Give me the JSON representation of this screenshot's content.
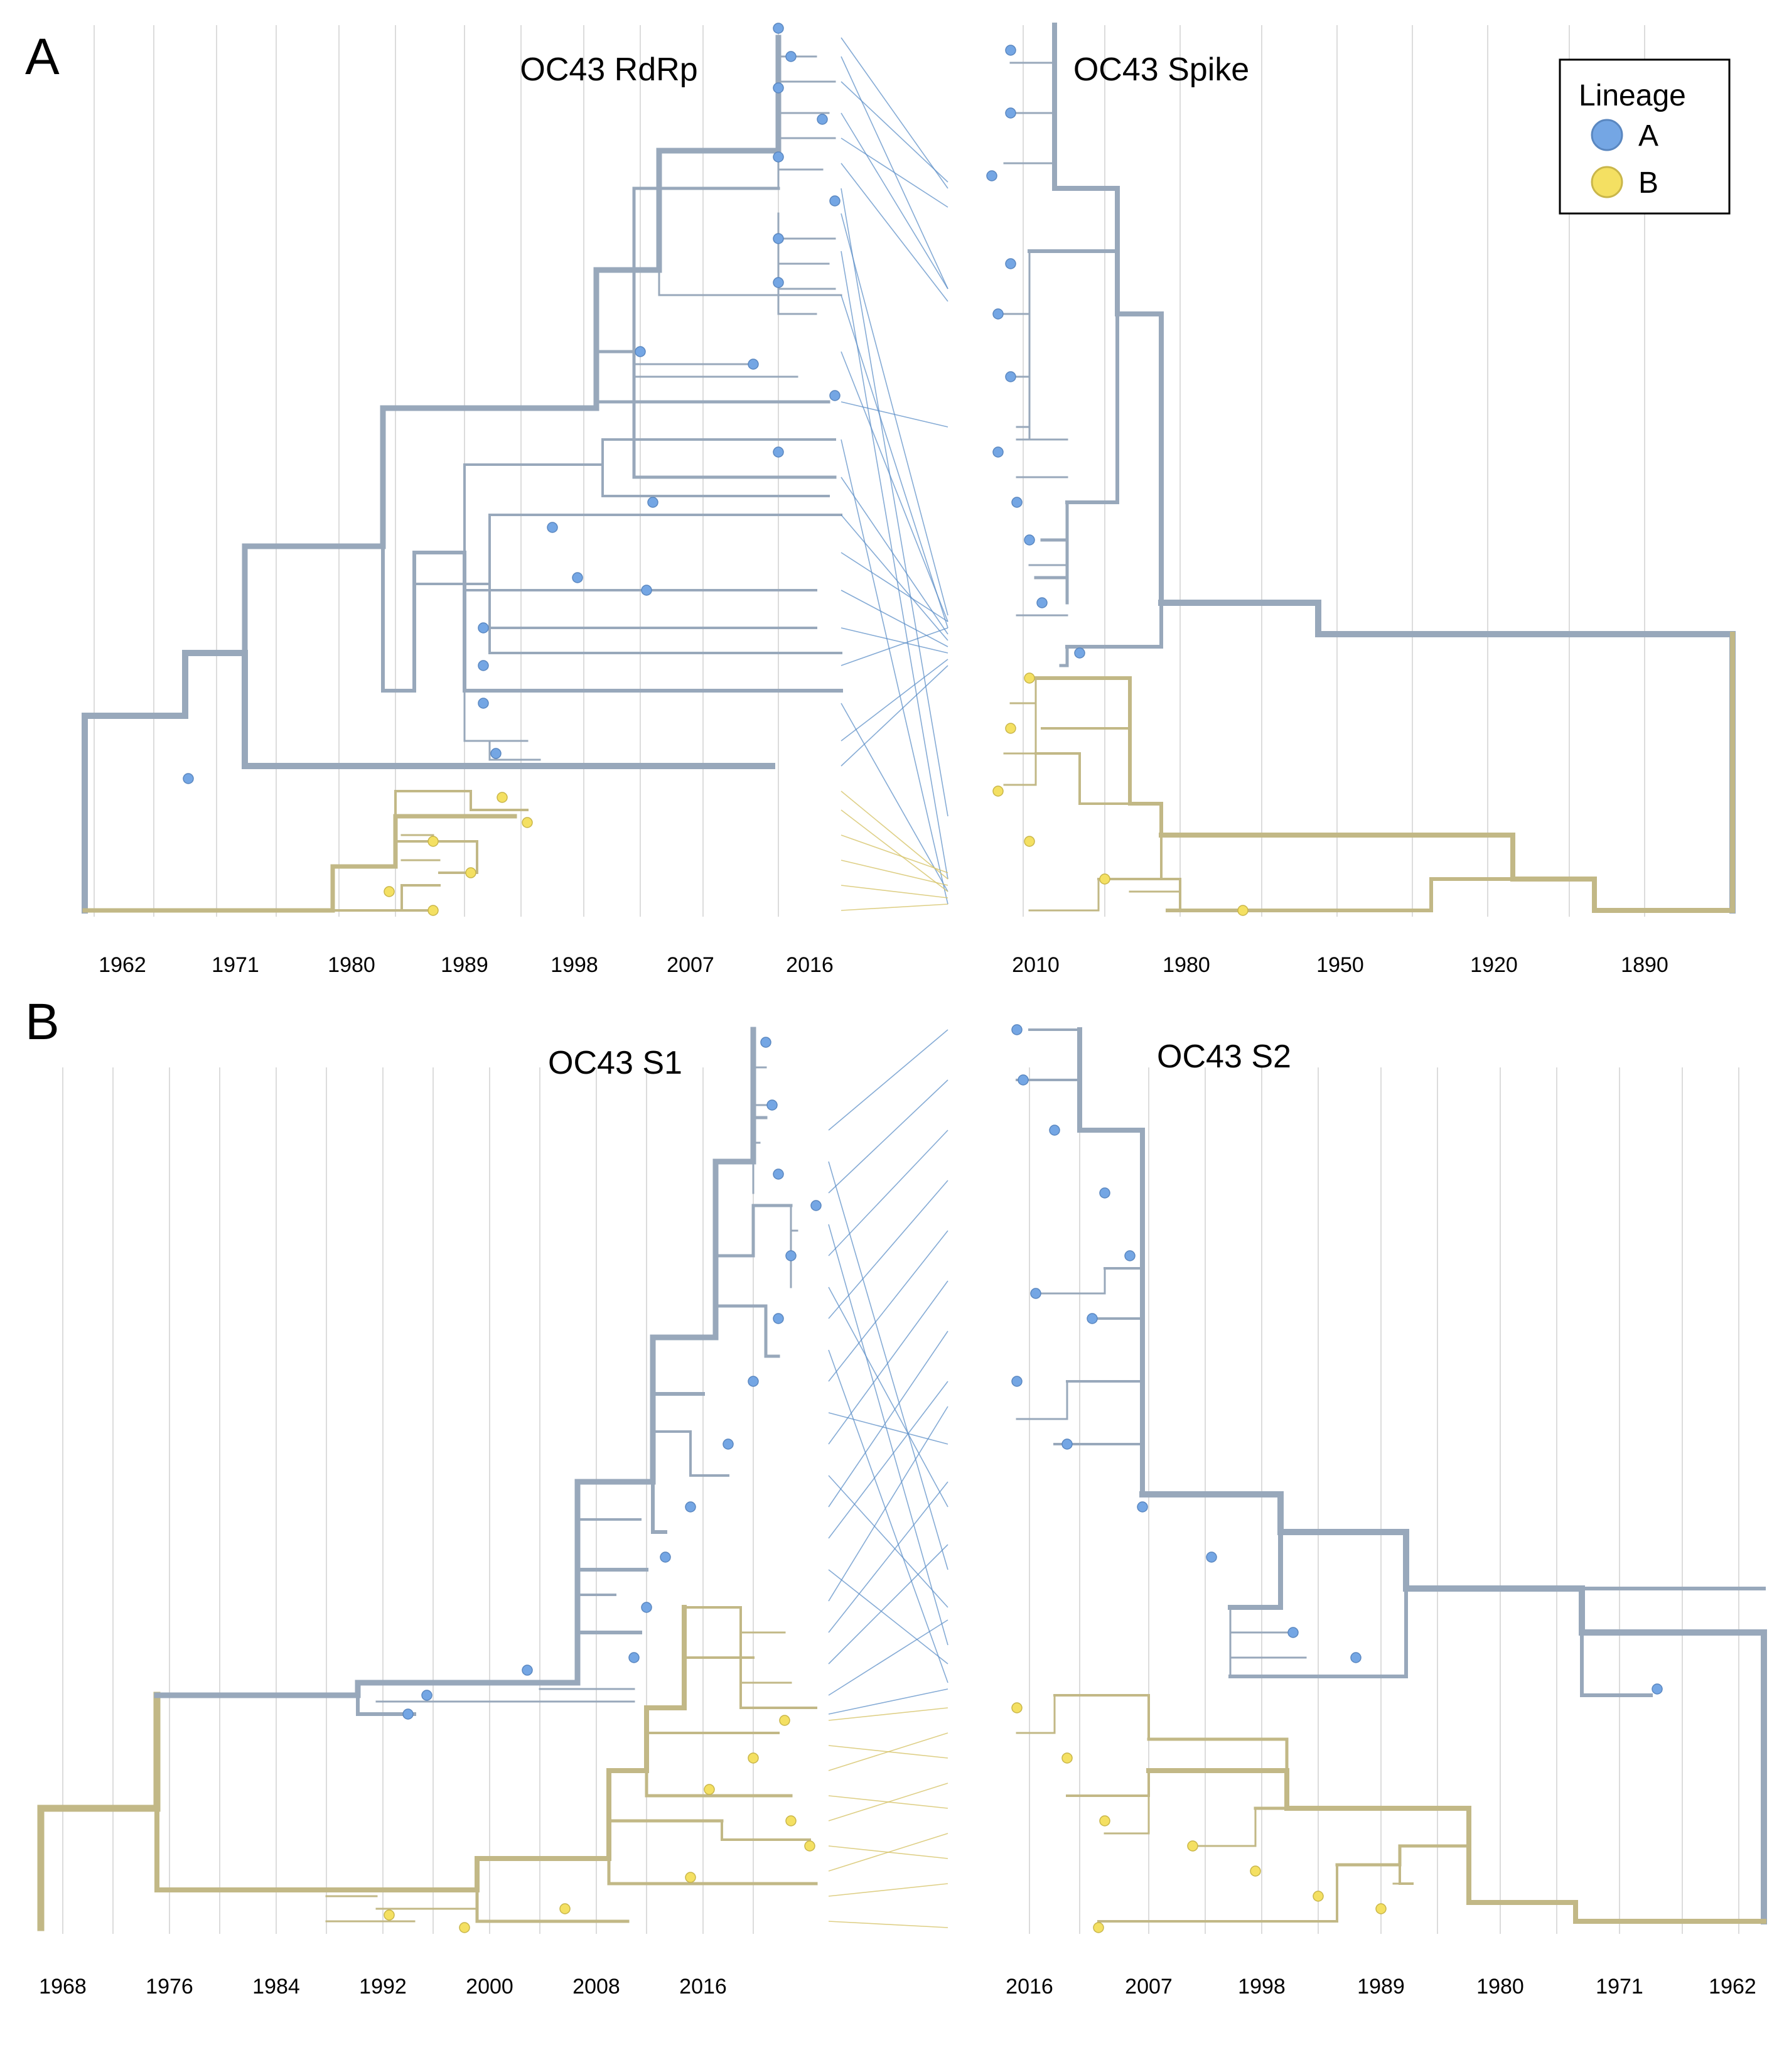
{
  "panels": [
    {
      "letter": "A",
      "left_title": "OC43 RdRp",
      "right_title": "OC43 Spike",
      "left_axis_ticks": [
        "1962",
        "1971",
        "1980",
        "1989",
        "1998",
        "2007",
        "2016"
      ],
      "right_axis_ticks": [
        "2010",
        "1980",
        "1950",
        "1920",
        "1890"
      ]
    },
    {
      "letter": "B",
      "left_title": "OC43 S1",
      "right_title": "OC43 S2",
      "left_axis_ticks": [
        "1968",
        "1976",
        "1984",
        "1992",
        "2000",
        "2008",
        "2016"
      ],
      "right_axis_ticks": [
        "2016",
        "2007",
        "1998",
        "1989",
        "1980",
        "1971",
        "1962"
      ]
    }
  ],
  "legend": {
    "title": "Lineage",
    "items": [
      {
        "label": "A",
        "color": "#74a6e4"
      },
      {
        "label": "B",
        "color": "#f4e062"
      }
    ]
  },
  "colors": {
    "lineage_A_branch": "#98a8bb",
    "lineage_B_branch": "#c2b886",
    "lineage_A_tip": "#74a6e4",
    "lineage_B_tip": "#f4e062"
  }
}
